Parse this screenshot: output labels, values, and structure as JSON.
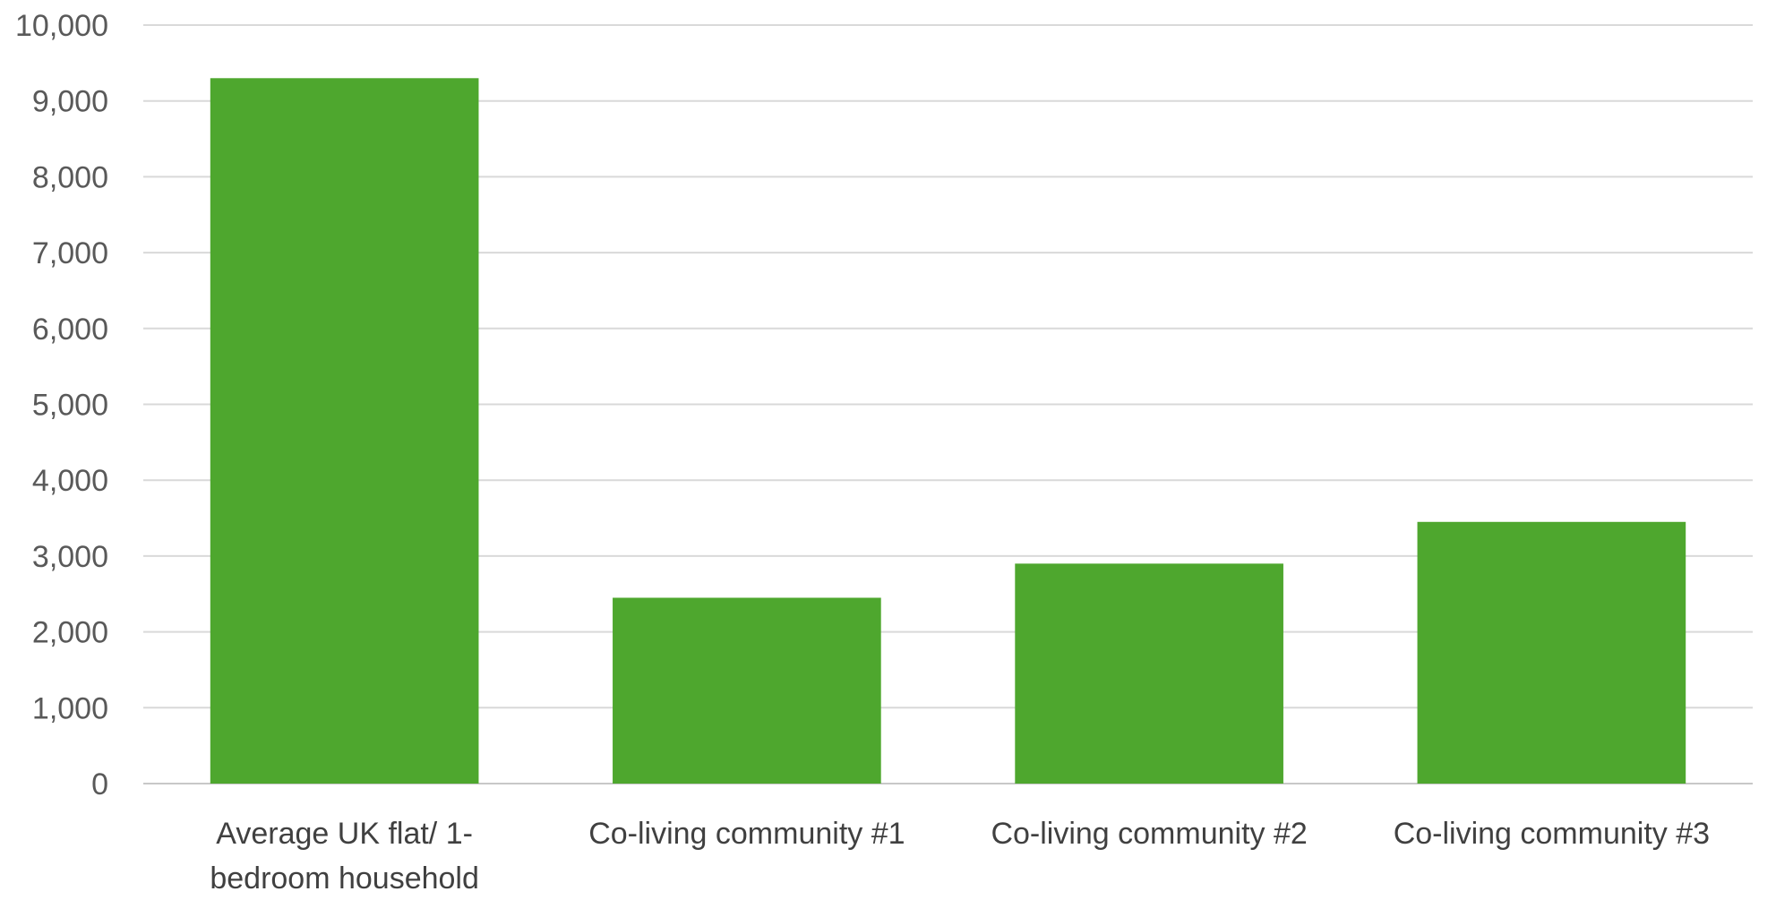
{
  "chart_data": {
    "type": "bar",
    "title": "",
    "xlabel": "",
    "ylabel": "",
    "categories": [
      [
        "Average UK flat/ 1-",
        "bedroom household"
      ],
      [
        "Co-living community #1"
      ],
      [
        "Co-living community #2"
      ],
      [
        "Co-living community #3"
      ]
    ],
    "values": [
      9300,
      2450,
      2900,
      3450
    ],
    "ylim": [
      0,
      10000
    ],
    "y_ticks": [
      0,
      1000,
      2000,
      3000,
      4000,
      5000,
      6000,
      7000,
      8000,
      9000,
      10000
    ],
    "y_tick_labels": [
      "0",
      "1,000",
      "2,000",
      "3,000",
      "4,000",
      "5,000",
      "6,000",
      "7,000",
      "8,000",
      "9,000",
      "10,000"
    ],
    "grid": true,
    "legend": "none",
    "bar_color": "#4ea72e",
    "grid_color": "#d9d9d9",
    "tick_color": "#595959",
    "category_color": "#404040"
  }
}
